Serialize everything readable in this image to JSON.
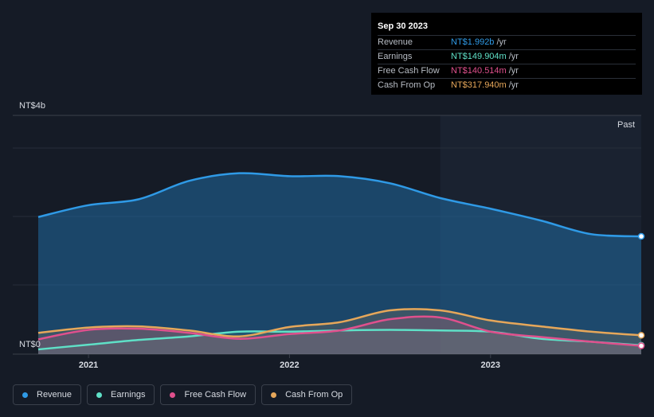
{
  "tooltip": {
    "date": "Sep 30 2023",
    "rows": [
      {
        "label": "Revenue",
        "value": "NT$1.992b",
        "unit": "/yr",
        "color": "#2f9ae6"
      },
      {
        "label": "Earnings",
        "value": "NT$149.904m",
        "unit": "/yr",
        "color": "#5fe0c7"
      },
      {
        "label": "Free Cash Flow",
        "value": "NT$140.514m",
        "unit": "/yr",
        "color": "#e0508d"
      },
      {
        "label": "Cash From Op",
        "value": "NT$317.940m",
        "unit": "/yr",
        "color": "#e6a75a"
      }
    ]
  },
  "legend": [
    {
      "label": "Revenue",
      "color": "#2f9ae6"
    },
    {
      "label": "Earnings",
      "color": "#5fe0c7"
    },
    {
      "label": "Free Cash Flow",
      "color": "#e0508d"
    },
    {
      "label": "Cash From Op",
      "color": "#e6a75a"
    }
  ],
  "chart_data": {
    "type": "area",
    "y_top_label": "NT$4b",
    "y_bottom_label": "NT$0",
    "past_label": "Past",
    "x_ticks": [
      {
        "label": "2021",
        "x": 2021.0
      },
      {
        "label": "2022",
        "x": 2022.0
      },
      {
        "label": "2023",
        "x": 2023.0
      }
    ],
    "xlim": [
      2020.75,
      2023.75
    ],
    "ylim": [
      0,
      3.5
    ],
    "past_start": 2022.75,
    "unit": "NT$ billions",
    "series": [
      {
        "name": "Revenue",
        "color": "#2f9ae6",
        "x": [
          2020.75,
          2021.0,
          2021.25,
          2021.5,
          2021.75,
          2022.0,
          2022.25,
          2022.5,
          2022.75,
          2023.0,
          2023.25,
          2023.5,
          2023.75
        ],
        "y": [
          2.32,
          2.52,
          2.62,
          2.93,
          3.06,
          3.01,
          3.01,
          2.89,
          2.64,
          2.46,
          2.26,
          2.03,
          1.992
        ]
      },
      {
        "name": "Earnings",
        "color": "#5fe0c7",
        "x": [
          2020.75,
          2021.0,
          2021.25,
          2021.5,
          2021.75,
          2022.0,
          2022.25,
          2022.5,
          2022.75,
          2023.0,
          2023.25,
          2023.5,
          2023.75
        ],
        "y": [
          0.08,
          0.16,
          0.24,
          0.3,
          0.38,
          0.38,
          0.4,
          0.41,
          0.4,
          0.38,
          0.26,
          0.21,
          0.149904
        ]
      },
      {
        "name": "Free Cash Flow",
        "color": "#e0508d",
        "x": [
          2020.75,
          2021.0,
          2021.25,
          2021.5,
          2021.75,
          2022.0,
          2022.25,
          2022.5,
          2022.75,
          2023.0,
          2023.25,
          2023.5,
          2023.75
        ],
        "y": [
          0.25,
          0.41,
          0.43,
          0.36,
          0.26,
          0.34,
          0.4,
          0.59,
          0.62,
          0.38,
          0.29,
          0.21,
          0.140514
        ]
      },
      {
        "name": "Cash From Op",
        "color": "#e6a75a",
        "x": [
          2020.75,
          2021.0,
          2021.25,
          2021.5,
          2021.75,
          2022.0,
          2022.25,
          2022.5,
          2022.75,
          2023.0,
          2023.25,
          2023.5,
          2023.75
        ],
        "y": [
          0.36,
          0.45,
          0.47,
          0.4,
          0.3,
          0.46,
          0.54,
          0.74,
          0.74,
          0.57,
          0.47,
          0.38,
          0.31794
        ]
      }
    ]
  }
}
